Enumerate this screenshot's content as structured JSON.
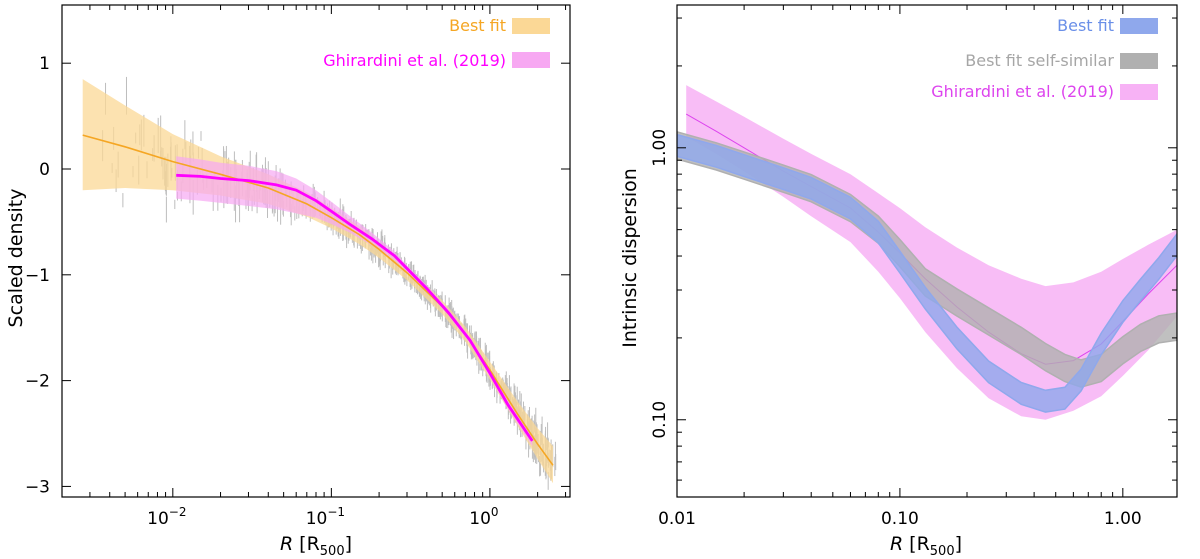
{
  "chart_data": [
    {
      "type": "line",
      "panel": "left",
      "xscale": "log",
      "xlim": [
        0.002,
        3.2
      ],
      "ylim": [
        -3.1,
        1.55
      ],
      "xlabel_italic": "R",
      "xlabel_unit": "[R",
      "xlabel_sub": "500",
      "xlabel_close": "]",
      "ylabel": "Scaled density",
      "xticks": [
        {
          "value": 0.01,
          "base": "10",
          "exp": "−2"
        },
        {
          "value": 0.1,
          "base": "10",
          "exp": "−1"
        },
        {
          "value": 1,
          "base": "10",
          "exp": "0"
        }
      ],
      "yticks": [
        {
          "value": 1,
          "label": "1"
        },
        {
          "value": 0,
          "label": "0"
        },
        {
          "value": -1,
          "label": "−1"
        },
        {
          "value": -2,
          "label": "−2"
        },
        {
          "value": -3,
          "label": "−3"
        }
      ],
      "legend_position": "top-right",
      "series": [
        {
          "name": "Best fit",
          "color": "#f5a623",
          "band_color": "#fbd896",
          "x": [
            0.0027,
            0.005,
            0.01,
            0.02,
            0.04,
            0.07,
            0.1,
            0.15,
            0.2,
            0.3,
            0.5,
            0.7,
            1.0,
            1.5,
            2.0,
            2.5
          ],
          "y": [
            0.32,
            0.21,
            0.07,
            -0.05,
            -0.18,
            -0.33,
            -0.46,
            -0.62,
            -0.76,
            -0.98,
            -1.3,
            -1.56,
            -1.9,
            -2.32,
            -2.6,
            -2.8
          ],
          "upper": [
            0.85,
            0.6,
            0.33,
            0.12,
            -0.05,
            -0.22,
            -0.37,
            -0.54,
            -0.7,
            -0.93,
            -1.24,
            -1.49,
            -1.82,
            -2.2,
            -2.45,
            -2.62
          ],
          "lower": [
            -0.2,
            -0.18,
            -0.2,
            -0.25,
            -0.33,
            -0.45,
            -0.56,
            -0.71,
            -0.84,
            -1.05,
            -1.37,
            -1.63,
            -1.99,
            -2.43,
            -2.74,
            -2.97
          ]
        },
        {
          "name": "Ghirardini et al. (2019)",
          "color": "#ff00ff",
          "band_color": "#f7a8f2",
          "x": [
            0.0105,
            0.015,
            0.02,
            0.03,
            0.045,
            0.06,
            0.08,
            0.1,
            0.13,
            0.18,
            0.25,
            0.3,
            0.4,
            0.55,
            0.75,
            1.0,
            1.3,
            1.85
          ],
          "y": [
            -0.06,
            -0.07,
            -0.09,
            -0.11,
            -0.15,
            -0.2,
            -0.3,
            -0.4,
            -0.52,
            -0.66,
            -0.82,
            -0.94,
            -1.13,
            -1.36,
            -1.62,
            -1.93,
            -2.23,
            -2.57
          ],
          "upper": [
            0.12,
            0.09,
            0.06,
            0.03,
            -0.02,
            -0.09,
            -0.2,
            -0.31,
            -0.44,
            -0.6,
            -0.78,
            -0.91,
            -1.1,
            -1.33,
            -1.59,
            -1.9,
            -2.19,
            -2.52
          ],
          "lower": [
            -0.28,
            -0.3,
            -0.32,
            -0.35,
            -0.38,
            -0.42,
            -0.46,
            -0.52,
            -0.6,
            -0.72,
            -0.86,
            -0.97,
            -1.16,
            -1.39,
            -1.65,
            -1.97,
            -2.27,
            -2.62
          ]
        }
      ]
    },
    {
      "type": "line",
      "panel": "right",
      "xscale": "log",
      "yscale": "log",
      "xlim": [
        0.01,
        1.75
      ],
      "ylim": [
        0.052,
        3.35
      ],
      "xlabel_italic": "R",
      "xlabel_unit": "[R",
      "xlabel_sub": "500",
      "xlabel_close": "]",
      "ylabel": "Intrinsic dispersion",
      "xticks": [
        {
          "value": 0.01,
          "label": "0.01"
        },
        {
          "value": 0.1,
          "label": "0.10"
        },
        {
          "value": 1,
          "label": "1.00"
        }
      ],
      "yticks": [
        {
          "value": 1,
          "label": "1.00"
        },
        {
          "value": 0.1,
          "label": "0.10"
        }
      ],
      "legend_position": "top-right",
      "series": [
        {
          "name": "Best fit",
          "color": "#6a8fe8",
          "band_color": "#8fa8ec",
          "x": [
            0.01,
            0.015,
            0.02,
            0.03,
            0.04,
            0.06,
            0.08,
            0.1,
            0.13,
            0.18,
            0.25,
            0.35,
            0.45,
            0.55,
            0.65,
            0.8,
            1.0,
            1.2,
            1.45,
            1.75
          ],
          "y": [
            1.02,
            0.93,
            0.86,
            0.77,
            0.71,
            0.6,
            0.49,
            0.38,
            0.28,
            0.2,
            0.15,
            0.125,
            0.117,
            0.12,
            0.14,
            0.19,
            0.25,
            0.3,
            0.36,
            0.44
          ],
          "halfwidth": 0.04
        },
        {
          "name": "Best fit self-similar",
          "color": "#a6a6a6",
          "band_color": "#b0b0b0",
          "x": [
            0.01,
            0.015,
            0.02,
            0.03,
            0.04,
            0.06,
            0.08,
            0.1,
            0.13,
            0.18,
            0.25,
            0.35,
            0.45,
            0.55,
            0.65,
            0.8,
            1.0,
            1.2,
            1.45,
            1.75
          ],
          "y": [
            1.02,
            0.93,
            0.86,
            0.77,
            0.71,
            0.6,
            0.5,
            0.41,
            0.32,
            0.27,
            0.23,
            0.195,
            0.17,
            0.155,
            0.148,
            0.155,
            0.18,
            0.2,
            0.215,
            0.22
          ],
          "halfwidth": 0.05
        },
        {
          "name": "Ghirardini et al. (2019)",
          "color": "#dd44ee",
          "band_color": "#f7b2f5",
          "x": [
            0.011,
            0.015,
            0.02,
            0.03,
            0.04,
            0.06,
            0.08,
            0.1,
            0.13,
            0.18,
            0.25,
            0.35,
            0.45,
            0.6,
            0.8,
            1.0,
            1.3,
            1.75
          ],
          "y": [
            1.33,
            1.15,
            1.0,
            0.82,
            0.72,
            0.6,
            0.49,
            0.41,
            0.33,
            0.26,
            0.21,
            0.175,
            0.16,
            0.165,
            0.19,
            0.23,
            0.29,
            0.37
          ],
          "upper": [
            1.7,
            1.48,
            1.3,
            1.08,
            0.95,
            0.8,
            0.68,
            0.6,
            0.51,
            0.43,
            0.37,
            0.33,
            0.31,
            0.32,
            0.35,
            0.39,
            0.44,
            0.5
          ],
          "lower": [
            1.1,
            0.95,
            0.82,
            0.66,
            0.56,
            0.45,
            0.35,
            0.28,
            0.21,
            0.155,
            0.12,
            0.103,
            0.1,
            0.108,
            0.122,
            0.145,
            0.18,
            0.24
          ]
        }
      ]
    }
  ]
}
